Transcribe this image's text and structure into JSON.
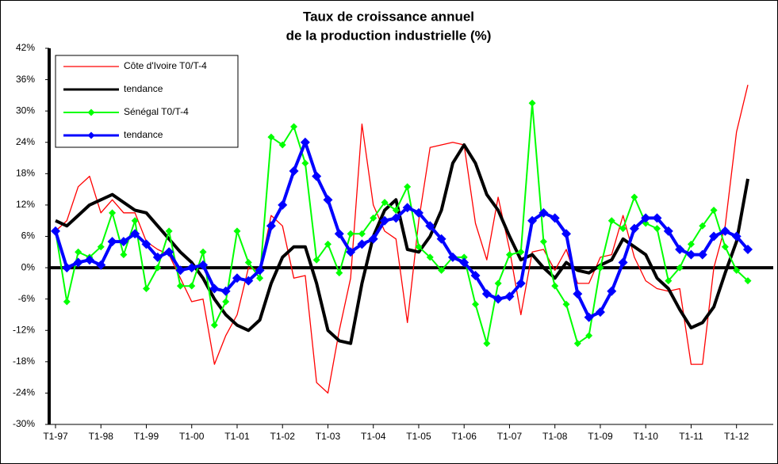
{
  "chart_data": {
    "type": "line",
    "title": [
      "Taux de croissance annuel",
      "de la production industrielle (%)"
    ],
    "categories": [
      "T1-97",
      null,
      null,
      null,
      "T1-98",
      null,
      null,
      null,
      "T1-99",
      null,
      null,
      null,
      "T1-00",
      null,
      null,
      null,
      "T1-01",
      null,
      null,
      null,
      "T1-02",
      null,
      null,
      null,
      "T1-03",
      null,
      null,
      null,
      "T1-04",
      null,
      null,
      null,
      "T1-05",
      null,
      null,
      null,
      "T1-06",
      null,
      null,
      null,
      "T1-07",
      null,
      null,
      null,
      "T1-08",
      null,
      null,
      null,
      "T1-09",
      null,
      null,
      null,
      "T1-10",
      null,
      null,
      null,
      "T1-11",
      null,
      null,
      null,
      "T1-12",
      null
    ],
    "ylim": [
      -30,
      42
    ],
    "yticks": [
      {
        "value": -30,
        "label": "-30%"
      },
      {
        "value": -24,
        "label": "-24%"
      },
      {
        "value": -18,
        "label": "-18%"
      },
      {
        "value": -12,
        "label": "-12%"
      },
      {
        "value": -6,
        "label": "-6%"
      },
      {
        "value": 0,
        "label": "0%"
      },
      {
        "value": 6,
        "label": "6%"
      },
      {
        "value": 12,
        "label": "12%"
      },
      {
        "value": 18,
        "label": "18%"
      },
      {
        "value": 24,
        "label": "24%"
      },
      {
        "value": 30,
        "label": "30%"
      },
      {
        "value": 36,
        "label": "36%"
      },
      {
        "value": 42,
        "label": "42%"
      }
    ],
    "grid": false,
    "legend": "upper left",
    "series": [
      {
        "name": "Côte d'Ivoire T0/T-4",
        "color": "#ff0000",
        "width": 1.3,
        "marker": "none",
        "values": [
          7,
          9,
          15.5,
          17.5,
          10.5,
          13,
          10.5,
          10.5,
          5,
          3.5,
          2.5,
          -2,
          -6.5,
          -6,
          -18.5,
          -13,
          -9,
          0,
          -0.5,
          10,
          8,
          -2,
          -1.5,
          -22,
          -24,
          -12,
          -2,
          27.5,
          12,
          7,
          5.5,
          -10.5,
          9,
          23,
          23.5,
          24,
          23.5,
          8.5,
          1.5,
          13.5,
          3.5,
          -9,
          3,
          3.5,
          -0.5,
          3.5,
          -3,
          -3,
          2,
          2.5,
          10,
          2,
          -2.5,
          -4,
          -4.5,
          -4,
          -18.5,
          -18.5,
          0,
          8,
          26,
          35
        ]
      },
      {
        "name": "tendance",
        "color": "#000000",
        "width": 4,
        "marker": "none",
        "values": [
          9,
          8,
          10,
          12,
          13,
          14,
          12.5,
          11,
          10.5,
          8,
          5.5,
          3,
          1,
          -2,
          -6,
          -9,
          -11,
          -12,
          -10,
          -3,
          2,
          4,
          4,
          -3,
          -12,
          -14,
          -14.5,
          -3,
          6,
          11,
          13,
          3.5,
          3,
          6,
          11,
          20,
          23.5,
          20,
          14,
          11,
          6,
          1.5,
          2.5,
          0,
          -2,
          1,
          -0.5,
          -1,
          0.5,
          1.5,
          5.5,
          4,
          2.5,
          -2,
          -4,
          -8,
          -11.5,
          -10.5,
          -7.5,
          -1,
          5,
          17
        ]
      },
      {
        "name": "Sénégal T0/T-4",
        "color": "#00ff00",
        "width": 2,
        "marker": "diamond",
        "values": [
          7,
          -6.5,
          3,
          2,
          4,
          10.5,
          2.5,
          9,
          -4,
          0,
          7,
          -3.5,
          -3.5,
          3,
          -11,
          -6.5,
          7,
          1,
          -2,
          25,
          23.5,
          27,
          20,
          1.5,
          4.5,
          -1,
          6.5,
          6.5,
          9.5,
          12.5,
          11,
          15.5,
          4,
          2,
          -0.5,
          2,
          2,
          -7,
          -14.5,
          -3,
          2.5,
          3,
          31.5,
          5,
          -3.5,
          -7,
          -14.5,
          -13,
          0,
          9,
          7.5,
          13.5,
          8.5,
          7.5,
          -2.5,
          0,
          4.5,
          8,
          11,
          4,
          -0.5,
          -2.5
        ]
      },
      {
        "name": "tendance",
        "color": "#0000ff",
        "width": 4,
        "marker": "diamond",
        "values": [
          7,
          0,
          1,
          1.5,
          0.5,
          5,
          5,
          6.5,
          4.5,
          2,
          3,
          -0.5,
          0,
          0.5,
          -4,
          -4.5,
          -2,
          -2.5,
          -0.5,
          8,
          12,
          18.5,
          24,
          17.5,
          13,
          6.5,
          3,
          4.5,
          5.5,
          9,
          9.5,
          11.5,
          10.5,
          8,
          5.5,
          2,
          1,
          -1.5,
          -5,
          -6,
          -5.5,
          -3,
          9,
          10.5,
          9.5,
          6.5,
          -5,
          -9.5,
          -8.5,
          -4.5,
          1,
          7.5,
          9.5,
          9.5,
          7,
          3.5,
          2.5,
          2.5,
          6,
          7,
          6,
          3.5
        ]
      }
    ]
  }
}
